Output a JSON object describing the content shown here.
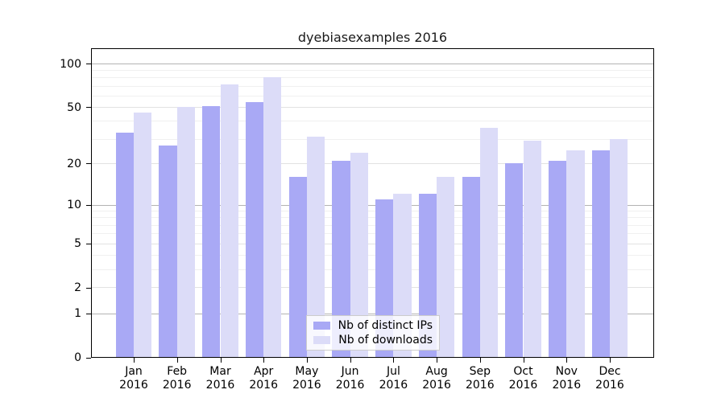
{
  "title": "dyebiasexamples 2016",
  "chart_data": {
    "type": "bar",
    "title": "dyebiasexamples 2016",
    "categories": [
      "Jan",
      "Feb",
      "Mar",
      "Apr",
      "May",
      "Jun",
      "Jul",
      "Aug",
      "Sep",
      "Oct",
      "Nov",
      "Dec"
    ],
    "xtick_year": "2016",
    "series": [
      {
        "name": "Nb of distinct IPs",
        "color": "#a9a9f5",
        "values": [
          33,
          27,
          51,
          54,
          16,
          21,
          11,
          12,
          16,
          20,
          21,
          25
        ]
      },
      {
        "name": "Nb of downloads",
        "color": "#dcdcf8",
        "values": [
          46,
          50,
          72,
          81,
          31,
          24,
          12,
          16,
          36,
          29,
          25,
          30
        ]
      }
    ],
    "xlabel": "",
    "ylabel": "",
    "yscale": "log1p",
    "ytick_values": [
      0,
      1,
      2,
      5,
      10,
      20,
      50,
      100
    ],
    "ytick_labels": [
      "0",
      "1",
      "2",
      "5",
      "10",
      "20",
      "50",
      "100"
    ],
    "minor_grid_values": [
      3,
      4,
      6,
      7,
      8,
      9,
      30,
      40,
      60,
      70,
      80,
      90
    ],
    "ylim": [
      0,
      128
    ],
    "grid": true,
    "legend_position": "bottom-center",
    "colors": {
      "grid_decade": "#b3b3b3",
      "grid_mid": "#e2e2e2",
      "grid_minor": "#f0f0f0",
      "axis": "#000000",
      "background": "#ffffff"
    }
  }
}
